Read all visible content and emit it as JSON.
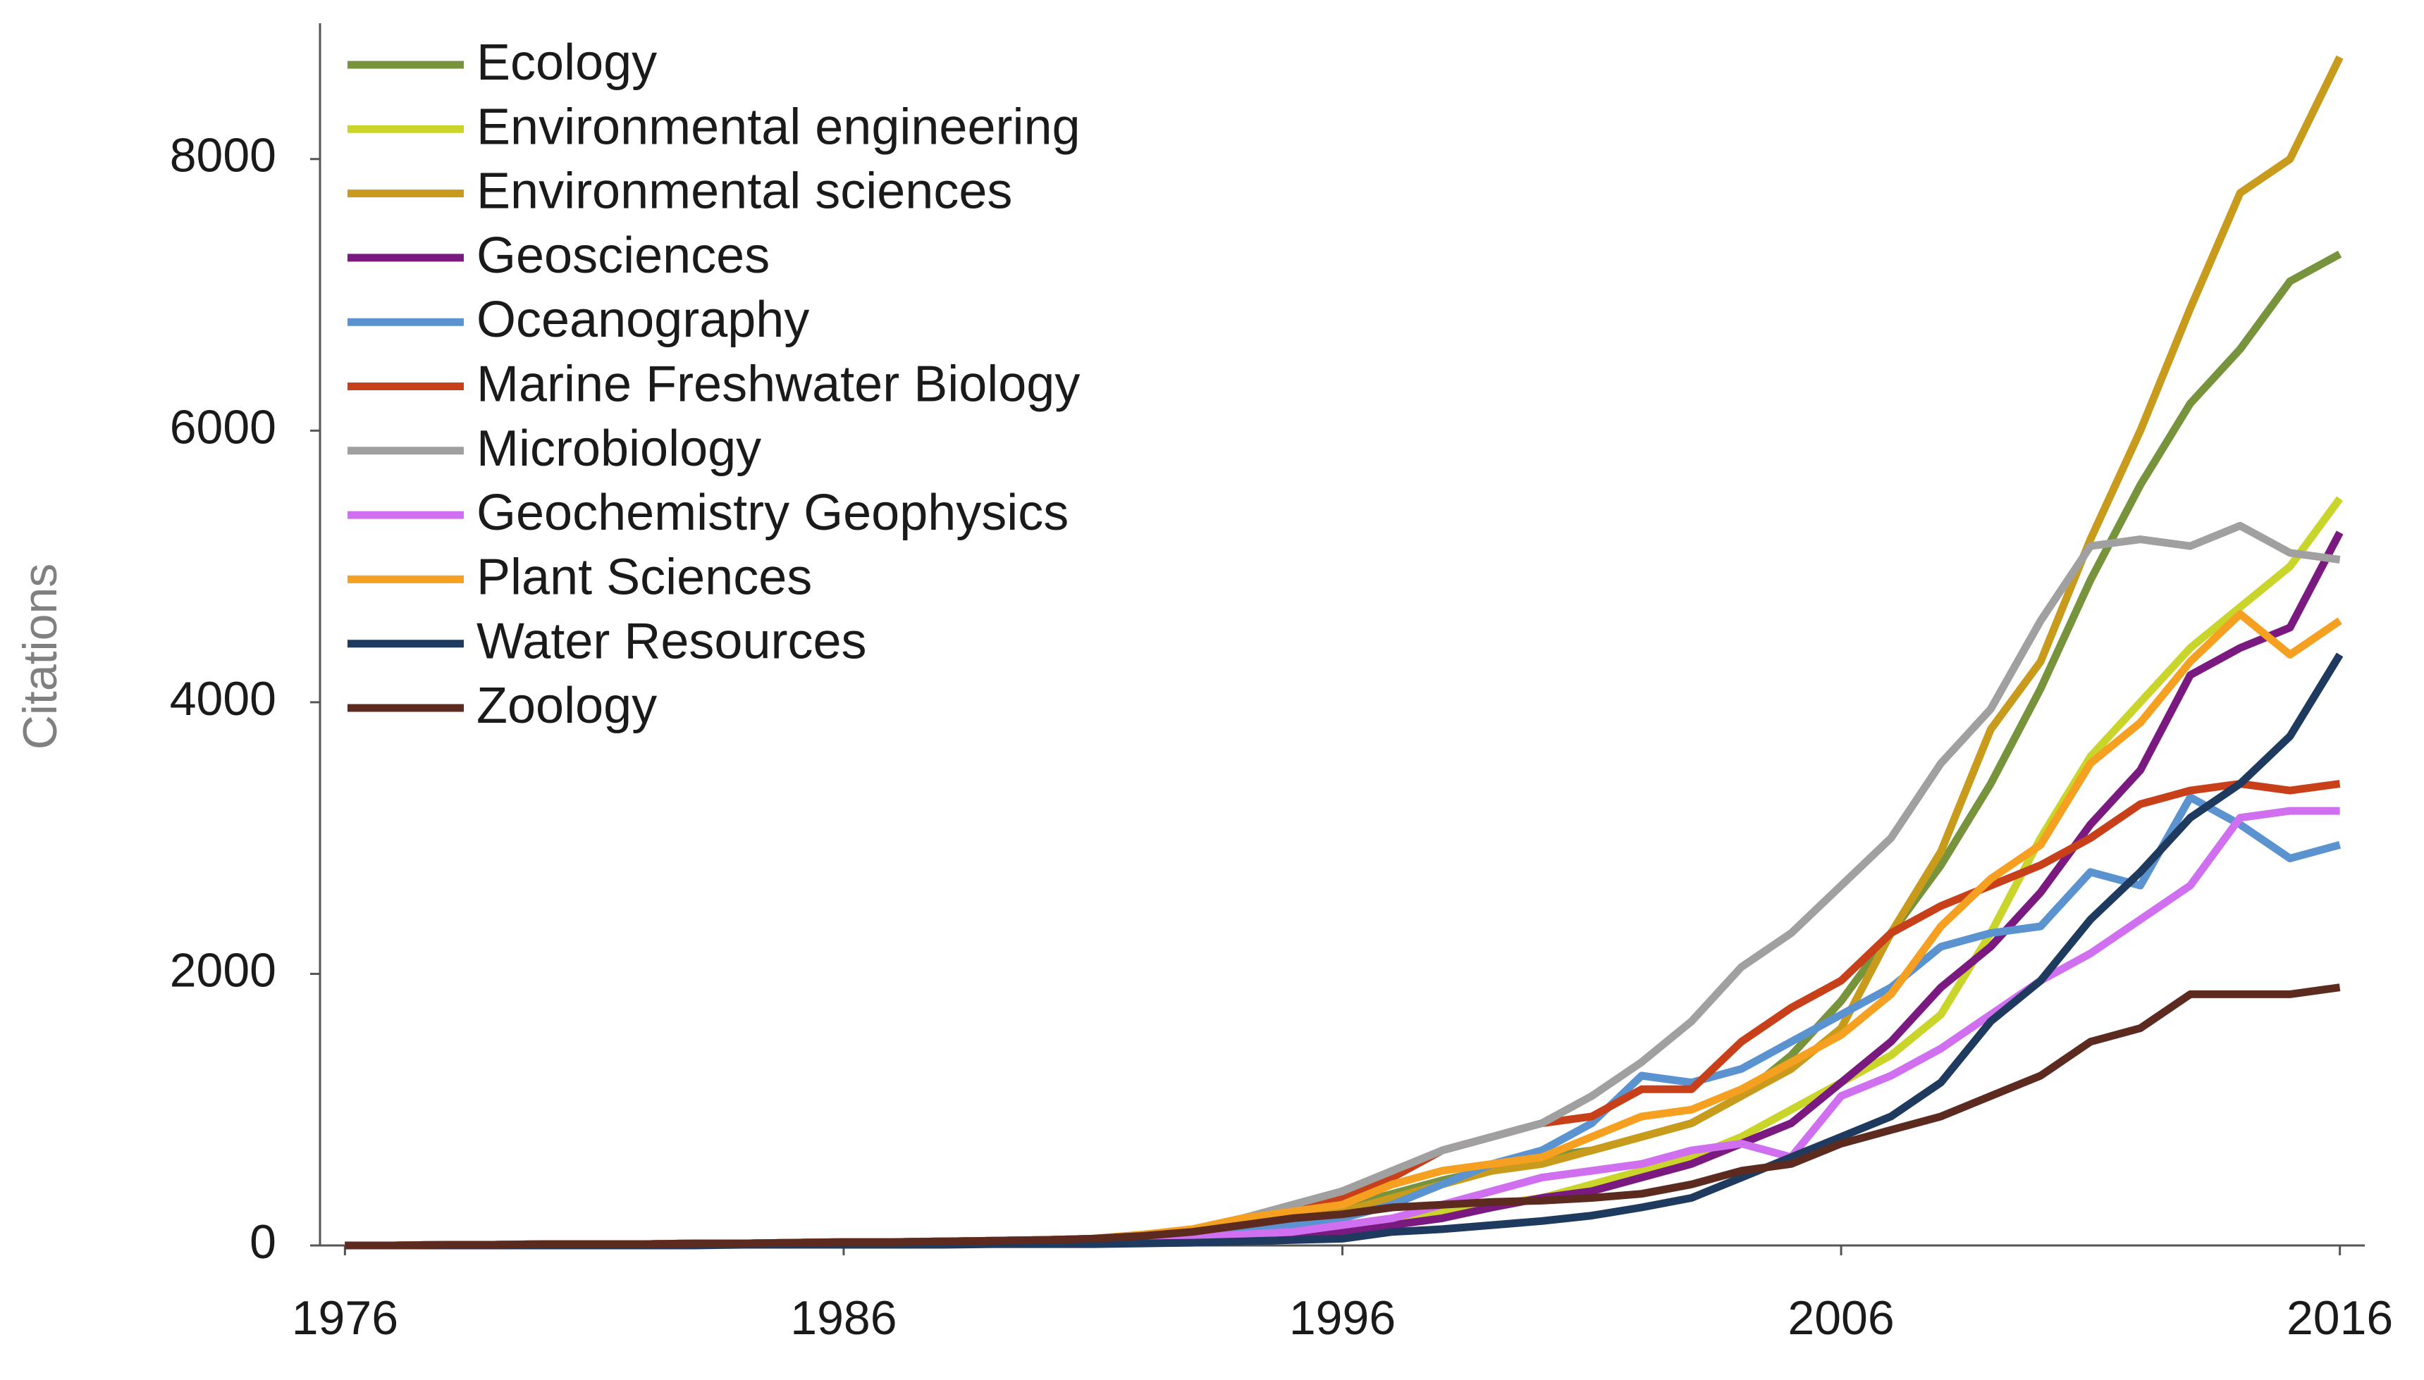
{
  "chart_data": {
    "type": "line",
    "y_label": "Citations",
    "x": [
      1976,
      1977,
      1978,
      1979,
      1980,
      1981,
      1982,
      1983,
      1984,
      1985,
      1986,
      1987,
      1988,
      1989,
      1990,
      1991,
      1992,
      1993,
      1994,
      1995,
      1996,
      1997,
      1998,
      1999,
      2000,
      2001,
      2002,
      2003,
      2004,
      2005,
      2006,
      2007,
      2008,
      2009,
      2010,
      2011,
      2012,
      2013,
      2014,
      2015,
      2016
    ],
    "xlim": [
      1975.5,
      2016.5
    ],
    "xticks": [
      1976,
      1986,
      1996,
      2006,
      2016
    ],
    "ylim": [
      0,
      9000
    ],
    "yticks": [
      0,
      2000,
      4000,
      6000,
      8000
    ],
    "legend": "upper left",
    "series": [
      {
        "name": "Ecology",
        "color": "#77933c",
        "values": [
          0,
          0,
          5,
          5,
          10,
          10,
          10,
          15,
          15,
          20,
          25,
          25,
          30,
          35,
          40,
          50,
          70,
          100,
          150,
          200,
          280,
          380,
          480,
          560,
          650,
          700,
          800,
          900,
          1100,
          1400,
          1800,
          2300,
          2800,
          3400,
          4100,
          4900,
          5600,
          6200,
          6600,
          7100,
          7300
        ]
      },
      {
        "name": "Environmental engineering",
        "color": "#c9d52a",
        "values": [
          0,
          0,
          5,
          5,
          10,
          10,
          10,
          15,
          15,
          20,
          25,
          25,
          30,
          35,
          40,
          50,
          55,
          60,
          80,
          120,
          150,
          200,
          250,
          300,
          350,
          450,
          550,
          650,
          800,
          1000,
          1200,
          1400,
          1700,
          2300,
          3000,
          3600,
          4000,
          4400,
          4700,
          5000,
          5500
        ]
      },
      {
        "name": "Environmental sciences",
        "color": "#c89b1c",
        "values": [
          0,
          0,
          5,
          5,
          10,
          10,
          10,
          15,
          15,
          20,
          25,
          25,
          30,
          35,
          40,
          50,
          70,
          100,
          150,
          200,
          250,
          350,
          450,
          550,
          600,
          700,
          800,
          900,
          1100,
          1300,
          1600,
          2300,
          2900,
          3800,
          4300,
          5200,
          6000,
          6900,
          7750,
          8000,
          8750
        ]
      },
      {
        "name": "Geosciences",
        "color": "#7a1a80",
        "values": [
          0,
          0,
          5,
          5,
          10,
          10,
          10,
          15,
          15,
          20,
          25,
          25,
          30,
          35,
          40,
          45,
          50,
          60,
          70,
          80,
          100,
          150,
          200,
          280,
          350,
          400,
          500,
          600,
          750,
          900,
          1200,
          1500,
          1900,
          2200,
          2600,
          3100,
          3500,
          4200,
          4400,
          4550,
          5250
        ]
      },
      {
        "name": "Oceanography",
        "color": "#5b93d0",
        "values": [
          0,
          0,
          5,
          5,
          10,
          10,
          10,
          15,
          15,
          20,
          25,
          25,
          30,
          35,
          40,
          50,
          70,
          100,
          120,
          150,
          200,
          300,
          450,
          600,
          700,
          900,
          1250,
          1200,
          1300,
          1500,
          1700,
          1900,
          2200,
          2300,
          2350,
          2750,
          2650,
          3300,
          3100,
          2850,
          2950
        ]
      },
      {
        "name": "Marine Freshwater Biology",
        "color": "#c8401a",
        "values": [
          0,
          0,
          5,
          5,
          10,
          10,
          10,
          15,
          15,
          20,
          25,
          25,
          30,
          35,
          40,
          50,
          70,
          100,
          200,
          280,
          350,
          500,
          700,
          800,
          900,
          950,
          1150,
          1150,
          1500,
          1750,
          1950,
          2300,
          2500,
          2650,
          2800,
          3000,
          3250,
          3350,
          3400,
          3350,
          3400
        ]
      },
      {
        "name": "Microbiology",
        "color": "#a0a0a0",
        "values": [
          0,
          0,
          5,
          5,
          10,
          10,
          10,
          15,
          15,
          20,
          25,
          25,
          30,
          35,
          40,
          50,
          80,
          120,
          200,
          300,
          400,
          550,
          700,
          800,
          900,
          1100,
          1350,
          1650,
          2050,
          2300,
          2650,
          3000,
          3550,
          3950,
          4600,
          5150,
          5200,
          5150,
          5300,
          5100,
          5050
        ]
      },
      {
        "name": "Geochemistry Geophysics",
        "color": "#d070f0",
        "values": [
          0,
          0,
          5,
          5,
          10,
          10,
          10,
          15,
          15,
          20,
          25,
          25,
          30,
          35,
          40,
          45,
          50,
          60,
          80,
          100,
          150,
          200,
          300,
          400,
          500,
          550,
          600,
          700,
          750,
          650,
          1100,
          1250,
          1450,
          1700,
          1950,
          2150,
          2400,
          2650,
          3150,
          3200,
          3200
        ]
      },
      {
        "name": "Plant Sciences",
        "color": "#f5a020",
        "values": [
          0,
          0,
          5,
          5,
          10,
          10,
          10,
          15,
          15,
          20,
          25,
          25,
          30,
          35,
          40,
          50,
          80,
          120,
          200,
          250,
          300,
          450,
          550,
          600,
          650,
          800,
          950,
          1000,
          1150,
          1350,
          1550,
          1850,
          2350,
          2700,
          2950,
          3550,
          3850,
          4300,
          4650,
          4350,
          4600
        ]
      },
      {
        "name": "Water Resources",
        "color": "#1f3a5f",
        "values": [
          0,
          0,
          0,
          0,
          0,
          0,
          0,
          0,
          5,
          5,
          5,
          5,
          5,
          10,
          10,
          10,
          15,
          20,
          30,
          40,
          50,
          100,
          120,
          150,
          180,
          220,
          280,
          350,
          500,
          650,
          800,
          950,
          1200,
          1650,
          1950,
          2400,
          2750,
          3150,
          3400,
          3750,
          4350
        ]
      },
      {
        "name": "Zoology",
        "color": "#5c2a1e",
        "values": [
          0,
          0,
          5,
          5,
          10,
          10,
          10,
          15,
          15,
          20,
          25,
          25,
          30,
          35,
          40,
          50,
          70,
          100,
          150,
          200,
          230,
          280,
          300,
          320,
          330,
          350,
          380,
          450,
          550,
          600,
          750,
          850,
          950,
          1100,
          1250,
          1500,
          1600,
          1850,
          1850,
          1850,
          1900
        ]
      }
    ]
  }
}
